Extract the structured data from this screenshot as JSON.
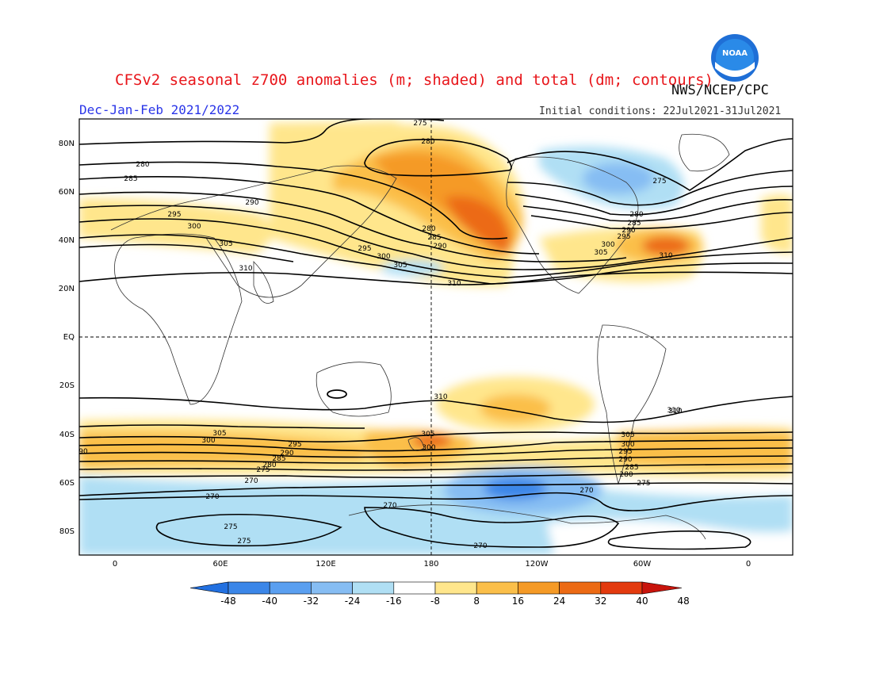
{
  "header": {
    "title": "CFSv2 seasonal z700 anomalies (m; shaded) and total (dm; contours)",
    "agency": "NWS/NCEP/CPC",
    "season": "Dec-Jan-Feb 2021/2022",
    "initial_conditions": "Initial conditions: 22Jul2021-31Jul2021",
    "logo_text": "NOAA"
  },
  "axes": {
    "lat_labels": [
      "80N",
      "60N",
      "40N",
      "20N",
      "EQ",
      "20S",
      "40S",
      "60S",
      "80S"
    ],
    "lon_labels": [
      "0",
      "60E",
      "120E",
      "180",
      "120W",
      "60W",
      "0"
    ]
  },
  "colorbar": {
    "ticks": [
      "-48",
      "-40",
      "-32",
      "-24",
      "-16",
      "-8",
      "8",
      "16",
      "24",
      "32",
      "40",
      "48"
    ],
    "colors": [
      "#2270e0",
      "#3b86e8",
      "#5a9ff0",
      "#86bdf3",
      "#b0dff4",
      "#ffffff",
      "#ffe68c",
      "#fbbf4a",
      "#f59a26",
      "#ec6a14",
      "#e33a0e",
      "#c8140c"
    ]
  },
  "contour_labels": [
    "275",
    "280",
    "280",
    "285",
    "290",
    "295",
    "300",
    "305",
    "310",
    "275",
    "280",
    "285",
    "290",
    "295",
    "300",
    "305",
    "310",
    "280",
    "285",
    "290",
    "295",
    "300",
    "305",
    "310",
    "310",
    "310",
    "305",
    "300",
    "295",
    "290",
    "285",
    "280",
    "275",
    "270",
    "305",
    "300",
    "305",
    "300",
    "295",
    "290",
    "285",
    "280",
    "275",
    "270",
    "270",
    "275",
    "275",
    "270",
    "270",
    "310",
    "90"
  ]
}
